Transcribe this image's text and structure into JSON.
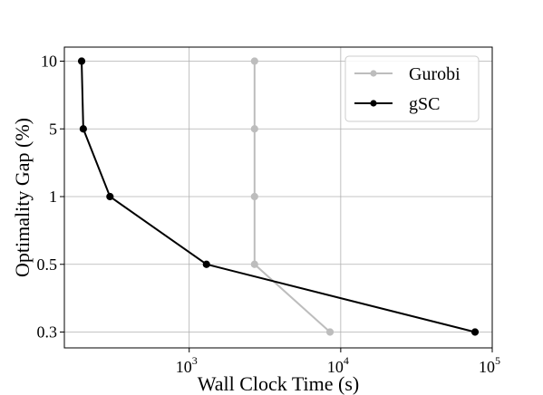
{
  "chart_data": {
    "type": "line",
    "title": "",
    "xlabel": "Wall Clock Time (s)",
    "ylabel": "Optimality Gap (%)",
    "x_scale": "log",
    "xlim": [
      150,
      100000
    ],
    "x_ticks": [
      {
        "value": 1000,
        "base": "10",
        "exp": "3"
      },
      {
        "value": 10000,
        "base": "10",
        "exp": "4"
      },
      {
        "value": 100000,
        "base": "10",
        "exp": "5"
      }
    ],
    "y_categories": [
      "10",
      "5",
      "1",
      "0.5",
      "0.3"
    ],
    "grid": true,
    "legend_position": "top-right",
    "series": [
      {
        "name": "Gurobi",
        "color": "#bdbdbd",
        "points": [
          {
            "x": 2700,
            "y": "10"
          },
          {
            "x": 2700,
            "y": "5"
          },
          {
            "x": 2700,
            "y": "1"
          },
          {
            "x": 2700,
            "y": "0.5"
          },
          {
            "x": 8500,
            "y": "0.3"
          }
        ]
      },
      {
        "name": "gSC",
        "color": "#000000",
        "points": [
          {
            "x": 195,
            "y": "10"
          },
          {
            "x": 200,
            "y": "5"
          },
          {
            "x": 300,
            "y": "1"
          },
          {
            "x": 1300,
            "y": "0.5"
          },
          {
            "x": 77000,
            "y": "0.3"
          }
        ]
      }
    ]
  }
}
